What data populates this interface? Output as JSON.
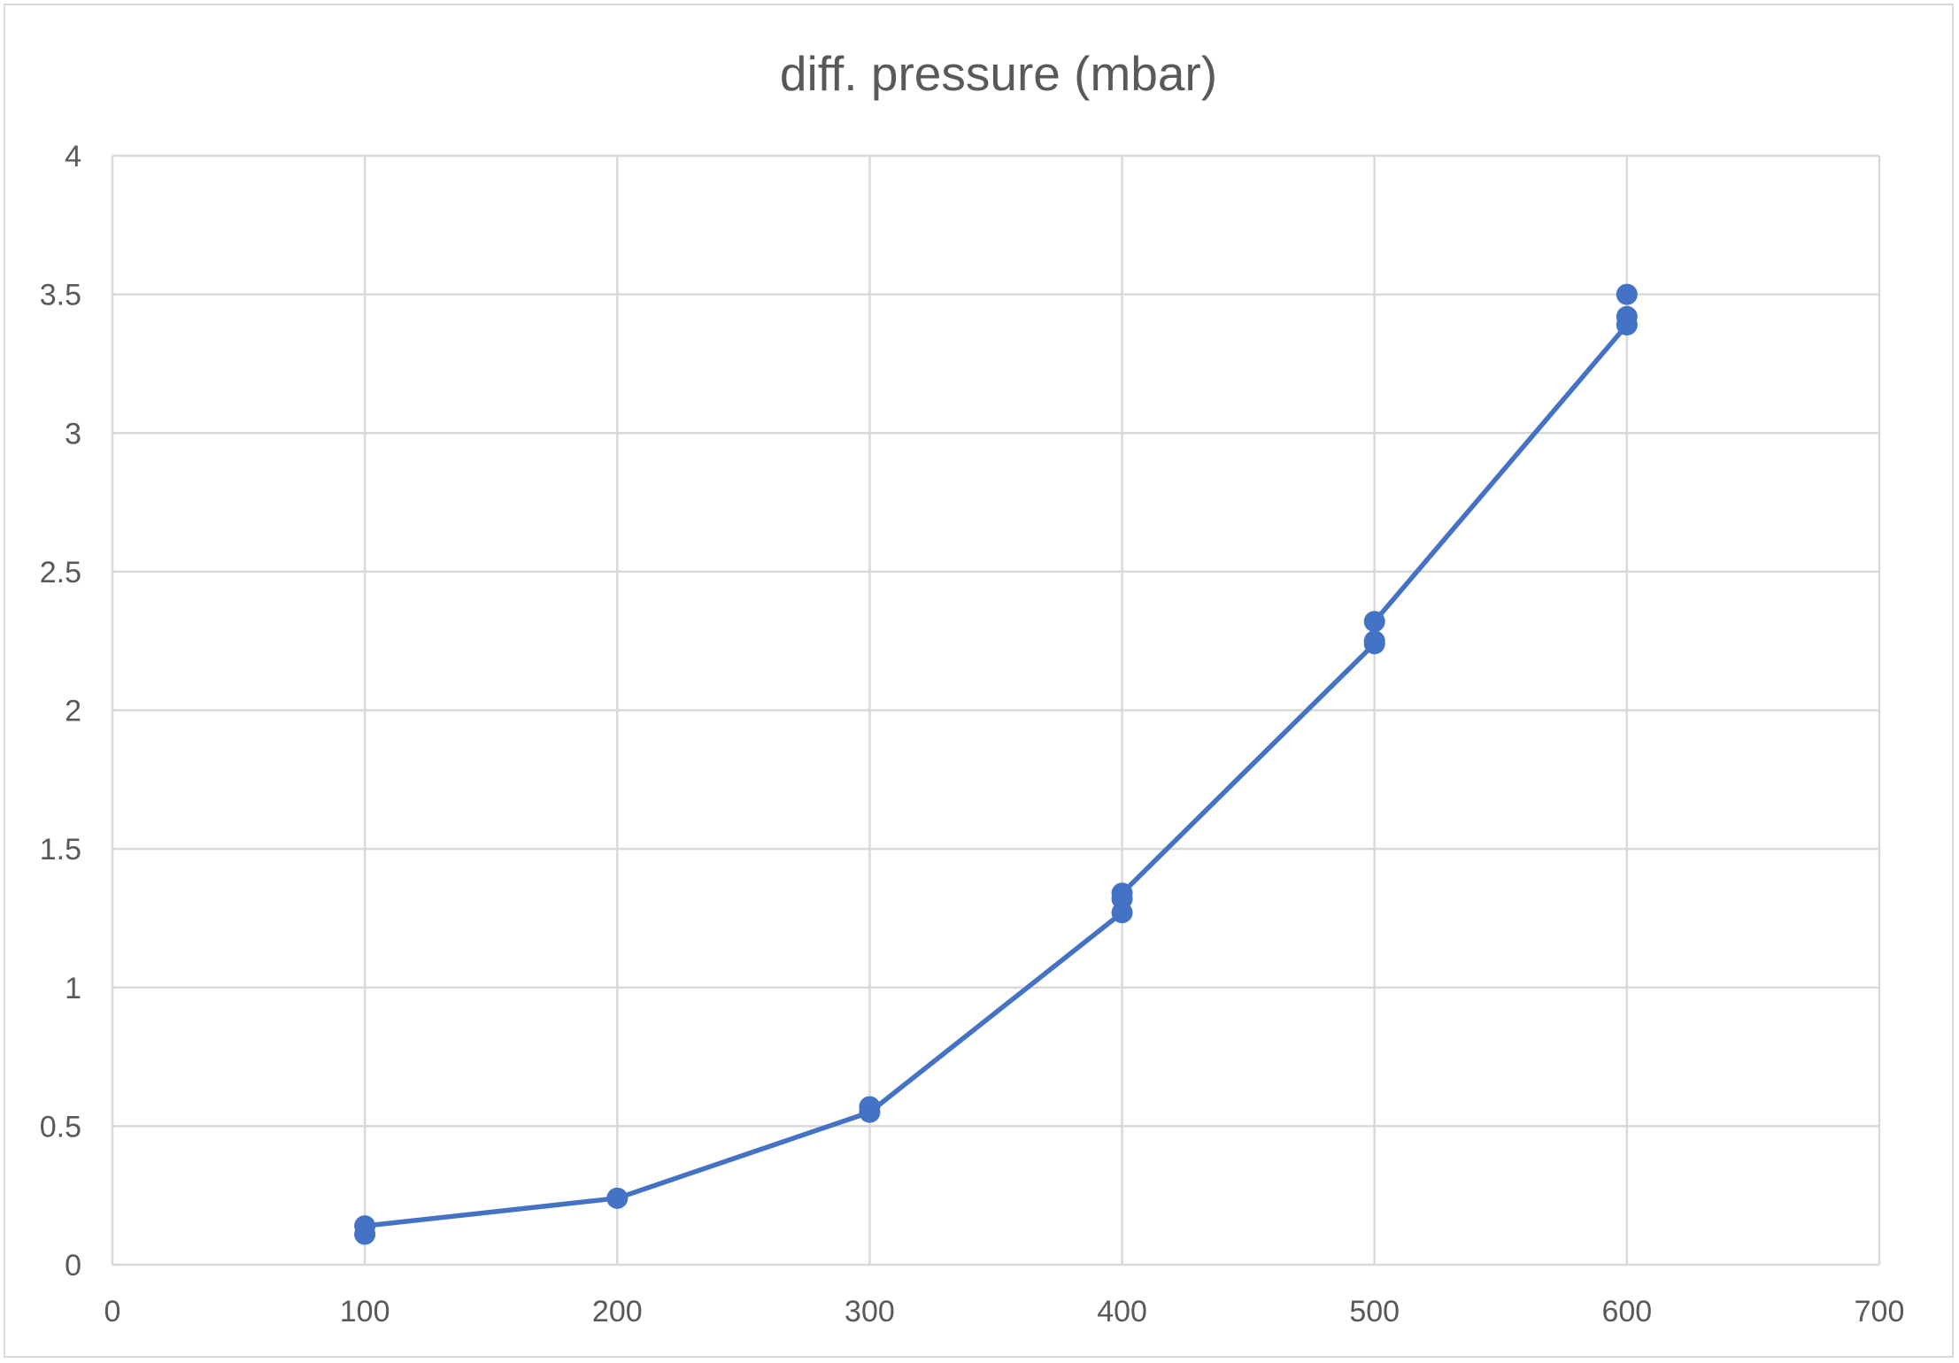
{
  "chart_data": {
    "type": "scatter",
    "title": "diff. pressure (mbar)",
    "xlabel": "",
    "ylabel": "",
    "xlim": [
      0,
      700
    ],
    "ylim": [
      0,
      4
    ],
    "x_ticks": [
      0,
      100,
      200,
      300,
      400,
      500,
      600,
      700
    ],
    "y_ticks": [
      0,
      0.5,
      1,
      1.5,
      2,
      2.5,
      3,
      3.5,
      4
    ],
    "x_tick_labels": [
      "0",
      "100",
      "200",
      "300",
      "400",
      "500",
      "600",
      "700"
    ],
    "y_tick_labels": [
      "0",
      "0.5",
      "1",
      "1.5",
      "2",
      "2.5",
      "3",
      "3.5",
      "4"
    ],
    "grid": true,
    "legend": "none",
    "series": [
      {
        "color": "#4472c4",
        "line": true,
        "markers": true,
        "points": [
          {
            "x": 100,
            "y": 0.11
          },
          {
            "x": 100,
            "y": 0.14
          },
          {
            "x": 200,
            "y": 0.24
          },
          {
            "x": 200,
            "y": 0.24
          },
          {
            "x": 300,
            "y": 0.55
          },
          {
            "x": 300,
            "y": 0.57
          },
          {
            "x": 400,
            "y": 1.27
          },
          {
            "x": 400,
            "y": 1.32
          },
          {
            "x": 400,
            "y": 1.34
          },
          {
            "x": 500,
            "y": 2.24
          },
          {
            "x": 500,
            "y": 2.25
          },
          {
            "x": 500,
            "y": 2.32
          },
          {
            "x": 600,
            "y": 3.39
          },
          {
            "x": 600,
            "y": 3.42
          },
          {
            "x": 600,
            "y": 3.5
          }
        ],
        "line_path": [
          {
            "x": 100,
            "y": 0.14
          },
          {
            "x": 200,
            "y": 0.24
          },
          {
            "x": 300,
            "y": 0.55
          },
          {
            "x": 400,
            "y": 1.27
          },
          {
            "x": 400,
            "y": 1.34
          },
          {
            "x": 500,
            "y": 2.24
          },
          {
            "x": 500,
            "y": 2.32
          },
          {
            "x": 600,
            "y": 3.39
          }
        ]
      }
    ]
  }
}
